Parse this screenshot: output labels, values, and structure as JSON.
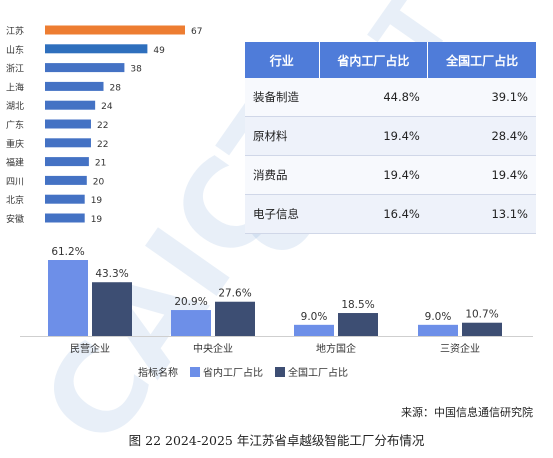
{
  "chart_data": [
    {
      "type": "bar",
      "orientation": "horizontal",
      "categories": [
        "江苏",
        "山东",
        "浙江",
        "上海",
        "湖北",
        "广东",
        "重庆",
        "福建",
        "四川",
        "北京",
        "安徽"
      ],
      "values": [
        67,
        49,
        38,
        28,
        24,
        22,
        22,
        21,
        20,
        19,
        19
      ],
      "highlight_index": 0,
      "colors": {
        "highlight": "#ed7d31",
        "default": "#4472c4",
        "second": "#2e6fbd"
      }
    },
    {
      "type": "table",
      "columns": [
        "行业",
        "省内工厂占比",
        "全国工厂占比"
      ],
      "rows": [
        [
          "装备制造",
          "44.8%",
          "39.1%"
        ],
        [
          "原材料",
          "19.4%",
          "28.4%"
        ],
        [
          "消费品",
          "19.4%",
          "19.4%"
        ],
        [
          "电子信息",
          "16.4%",
          "13.1%"
        ]
      ],
      "colors": {
        "header": "#4f7cd9"
      }
    },
    {
      "type": "bar",
      "orientation": "vertical",
      "categories": [
        "民营企业",
        "中央企业",
        "地方国企",
        "三资企业"
      ],
      "series": [
        {
          "name": "省内工厂占比",
          "values": [
            61.2,
            20.9,
            9.0,
            9.0
          ],
          "labels": [
            "61.2%",
            "20.9%",
            "9.0%",
            "9.0%"
          ],
          "color": "#6d8fe8"
        },
        {
          "name": "全国工厂占比",
          "values": [
            43.3,
            27.6,
            18.5,
            10.7
          ],
          "labels": [
            "43.3%",
            "27.6%",
            "18.5%",
            "10.7%"
          ],
          "color": "#3d4e73"
        }
      ],
      "legend_title": "指标名称",
      "legend_position": "bottom"
    }
  ],
  "source": "来源：中国信息通信研究院",
  "caption": "图 22 2024-2025 年江苏省卓越级智能工厂分布情况"
}
